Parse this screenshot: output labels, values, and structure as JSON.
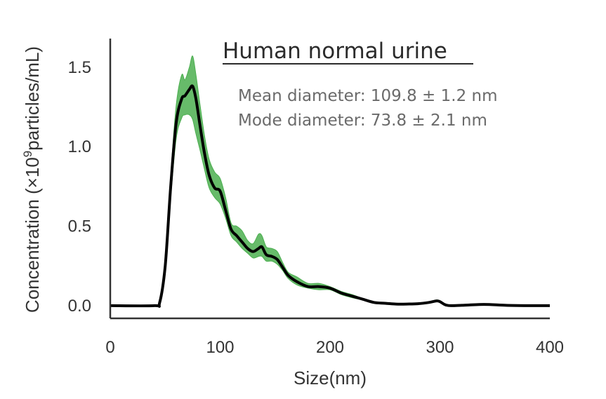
{
  "chart_data": {
    "type": "line",
    "title": "Human normal urine",
    "xlabel": "Size(nm)",
    "ylabel_prefix": "Concentration (",
    "ylabel_mult": "×10",
    "ylabel_exp": "9",
    "ylabel_suffix": "particles/mL)",
    "annotations": [
      "Mean diameter: 109.8 ± 1.2 nm",
      "Mode diameter: 73.8 ± 2.1 nm"
    ],
    "xlim": [
      0,
      400
    ],
    "ylim": [
      -0.08,
      1.68
    ],
    "xticks": [
      0,
      100,
      200,
      300,
      400
    ],
    "yticks": [
      0.0,
      0.5,
      1.0,
      1.5
    ],
    "xtick_labels": [
      "0",
      "100",
      "200",
      "300",
      "400"
    ],
    "ytick_labels": [
      "0.0",
      "0.5",
      "1.0",
      "1.5"
    ],
    "grid": false,
    "colors": {
      "line": "#000000",
      "band": "#4caf50",
      "axis": "#333333"
    },
    "series": [
      {
        "x": [
          0,
          40,
          45,
          50,
          55,
          60,
          65,
          68,
          72,
          75,
          78,
          82,
          86,
          90,
          95,
          100,
          105,
          110,
          115,
          120,
          125,
          130,
          135,
          138,
          142,
          147,
          152,
          157,
          162,
          170,
          180,
          190,
          200,
          210,
          220,
          230,
          240,
          250,
          260,
          270,
          280,
          290,
          297,
          300,
          305,
          310,
          320,
          340,
          360,
          380,
          400
        ],
        "values": [
          0.0,
          0.0,
          0.02,
          0.25,
          0.75,
          1.15,
          1.3,
          1.32,
          1.36,
          1.38,
          1.3,
          1.12,
          0.95,
          0.82,
          0.74,
          0.72,
          0.6,
          0.48,
          0.44,
          0.4,
          0.36,
          0.34,
          0.36,
          0.37,
          0.32,
          0.31,
          0.29,
          0.24,
          0.19,
          0.15,
          0.12,
          0.12,
          0.11,
          0.08,
          0.06,
          0.04,
          0.02,
          0.015,
          0.01,
          0.01,
          0.012,
          0.02,
          0.03,
          0.025,
          0.005,
          0.0,
          0.002,
          0.008,
          0.002,
          0.0,
          0.0
        ],
        "lower": [
          0.0,
          0.0,
          0.015,
          0.22,
          0.68,
          1.05,
          1.18,
          1.2,
          1.2,
          1.17,
          1.08,
          0.97,
          0.85,
          0.74,
          0.68,
          0.64,
          0.55,
          0.44,
          0.4,
          0.36,
          0.33,
          0.3,
          0.31,
          0.31,
          0.28,
          0.28,
          0.26,
          0.22,
          0.17,
          0.13,
          0.11,
          0.1,
          0.1,
          0.07,
          0.05,
          0.035,
          0.015,
          0.01,
          0.005,
          0.005,
          0.008,
          0.015,
          0.025,
          0.02,
          0.002,
          0.0,
          0.0,
          0.004,
          0.0,
          0.0,
          0.0
        ],
        "upper": [
          0.0,
          0.0,
          0.025,
          0.28,
          0.82,
          1.26,
          1.45,
          1.42,
          1.5,
          1.57,
          1.45,
          1.25,
          1.06,
          0.92,
          0.84,
          0.8,
          0.68,
          0.52,
          0.5,
          0.47,
          0.41,
          0.39,
          0.45,
          0.44,
          0.37,
          0.36,
          0.34,
          0.27,
          0.21,
          0.18,
          0.14,
          0.14,
          0.12,
          0.09,
          0.07,
          0.045,
          0.025,
          0.02,
          0.015,
          0.015,
          0.016,
          0.025,
          0.036,
          0.03,
          0.01,
          0.002,
          0.004,
          0.012,
          0.004,
          0.0,
          0.0
        ]
      }
    ]
  }
}
